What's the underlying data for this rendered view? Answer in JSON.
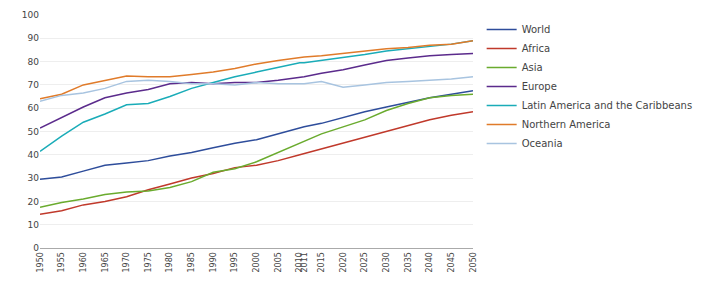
{
  "chart_data": {
    "type": "line",
    "x": [
      1950,
      1955,
      1960,
      1965,
      1970,
      1975,
      1980,
      1985,
      1990,
      1995,
      2000,
      2005,
      2010,
      2011,
      2015,
      2020,
      2025,
      2030,
      2035,
      2040,
      2045,
      2050
    ],
    "series": [
      {
        "name": "World",
        "color": "#2E4D9B",
        "values": [
          29.5,
          30.5,
          33.0,
          35.5,
          36.5,
          37.5,
          39.5,
          41.0,
          43.0,
          45.0,
          46.5,
          49.0,
          51.5,
          52.0,
          53.5,
          56.0,
          58.5,
          60.5,
          62.5,
          64.5,
          66.0,
          67.5
        ]
      },
      {
        "name": "Africa",
        "color": "#C0392B",
        "values": [
          14.5,
          16.0,
          18.5,
          20.0,
          22.0,
          25.0,
          27.5,
          30.0,
          32.0,
          34.5,
          35.5,
          37.5,
          40.0,
          40.5,
          42.5,
          45.0,
          47.5,
          50.0,
          52.5,
          55.0,
          57.0,
          58.5
        ]
      },
      {
        "name": "Asia",
        "color": "#6AAB2E",
        "values": [
          17.5,
          19.5,
          21.0,
          23.0,
          24.0,
          24.5,
          26.0,
          28.5,
          32.5,
          34.0,
          37.0,
          41.0,
          45.0,
          45.5,
          49.0,
          52.0,
          55.0,
          59.0,
          62.0,
          64.5,
          65.5,
          66.0
        ]
      },
      {
        "name": "Europe",
        "color": "#5B2B8C",
        "values": [
          51.5,
          56.0,
          60.5,
          64.5,
          66.5,
          68.0,
          70.5,
          71.0,
          70.5,
          71.0,
          71.0,
          72.0,
          73.0,
          73.5,
          75.0,
          76.5,
          78.5,
          80.5,
          81.5,
          82.5,
          83.0,
          83.5
        ]
      },
      {
        "name": "Latin America and the Caribbeans",
        "color": "#1AACB8",
        "values": [
          41.5,
          48.0,
          54.0,
          57.5,
          61.5,
          62.0,
          65.0,
          68.5,
          71.0,
          73.5,
          75.5,
          77.5,
          79.5,
          79.5,
          80.5,
          81.5,
          83.0,
          84.5,
          85.5,
          86.5,
          87.5,
          89.0
        ]
      },
      {
        "name": "Northern America",
        "color": "#E07B2A",
        "values": [
          64.0,
          66.0,
          70.0,
          72.0,
          73.8,
          73.5,
          73.5,
          74.5,
          75.5,
          77.0,
          79.0,
          80.5,
          82.0,
          82.0,
          82.5,
          83.5,
          84.5,
          85.5,
          86.0,
          87.0,
          87.5,
          89.0
        ]
      },
      {
        "name": "Oceania",
        "color": "#A8C4E0",
        "values": [
          63.0,
          65.5,
          66.5,
          68.5,
          71.5,
          72.0,
          71.5,
          70.5,
          70.5,
          70.0,
          71.0,
          70.5,
          70.5,
          70.5,
          71.5,
          69.0,
          70.0,
          71.0,
          71.5,
          72.0,
          72.5,
          73.5
        ]
      }
    ],
    "xlim": [
      1950,
      2050
    ],
    "xticks": [
      1950,
      1955,
      1960,
      1965,
      1970,
      1975,
      1980,
      1985,
      1990,
      1995,
      2000,
      2005,
      2010,
      2011,
      2015,
      2020,
      2025,
      2030,
      2035,
      2040,
      2045,
      2050
    ],
    "ylim": [
      0,
      100
    ],
    "yticks": [
      0,
      10,
      20,
      30,
      40,
      50,
      60,
      70,
      80,
      90,
      100
    ],
    "grid": "y",
    "legend": "right"
  }
}
